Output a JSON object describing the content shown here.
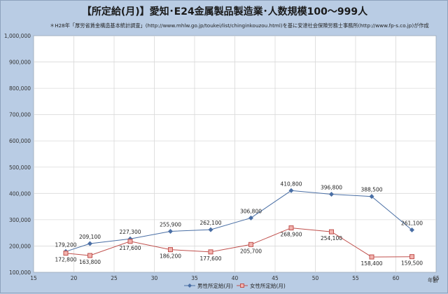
{
  "chart_data": {
    "type": "line",
    "title": "【所定給(月)】愛知･E24金属製品製造業･人数規模100～999人",
    "subtitle": "＊H28年「厚労省賃金構造基本統計調査」(http://www.mhlw.go.jp/toukei/list/chinginkouzou.html)を基に安達社会保険労務士事務所(http://www.fp-s.co.jp)が作成",
    "xlabel": "年齢",
    "ylabel": "",
    "xlim": [
      15,
      65
    ],
    "ylim": [
      100000,
      1000000
    ],
    "xticks": [
      "15",
      "20",
      "25",
      "30",
      "35",
      "40",
      "45",
      "50",
      "55",
      "60",
      "65"
    ],
    "yticks": [
      "100,000",
      "200,000",
      "300,000",
      "400,000",
      "500,000",
      "600,000",
      "700,000",
      "800,000",
      "900,000",
      "1,000,000"
    ],
    "grid": true,
    "legend": "bottom",
    "series": [
      {
        "name": "男性所定給(月)",
        "color": "#4a6fa5",
        "marker": "diamond",
        "x": [
          19,
          22,
          27,
          32,
          37,
          42,
          47,
          52,
          57,
          62
        ],
        "y": [
          179200,
          209100,
          227300,
          255900,
          262100,
          306800,
          410800,
          396800,
          388500,
          261100
        ],
        "labels": [
          "179,200",
          "209,100",
          "227,300",
          "255,900",
          "262,100",
          "306,800",
          "410,800",
          "396,800",
          "388,500",
          "261,100"
        ]
      },
      {
        "name": "女性所定給(月)",
        "color": "#c0504d",
        "marker": "square",
        "x": [
          19,
          22,
          27,
          32,
          37,
          42,
          47,
          52,
          57,
          62
        ],
        "y": [
          172800,
          163800,
          217600,
          186200,
          177600,
          205700,
          268900,
          254100,
          158400,
          159500
        ],
        "labels": [
          "172,800",
          "163,800",
          "217,600",
          "186,200",
          "177,600",
          "205,700",
          "268,900",
          "254,100",
          "158,400",
          "159,500"
        ]
      }
    ]
  }
}
